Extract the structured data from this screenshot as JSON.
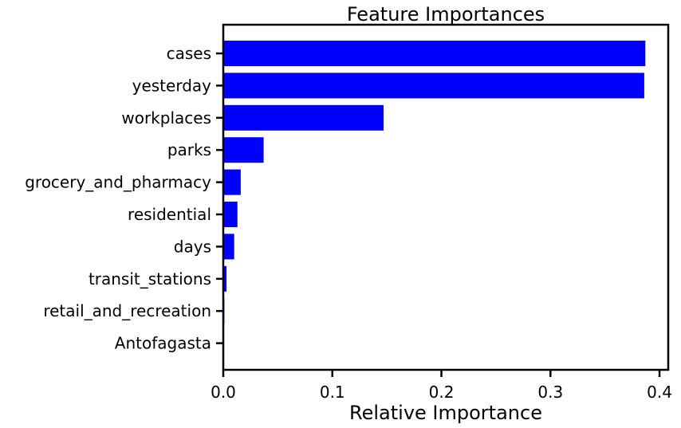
{
  "chart_data": {
    "type": "bar",
    "orientation": "horizontal",
    "title": "Feature Importances",
    "xlabel": "Relative Importance",
    "ylabel": "",
    "xlim": [
      0,
      0.408
    ],
    "x_ticks": [
      "0.0",
      "0.1",
      "0.2",
      "0.3",
      "0.4"
    ],
    "x_tick_values": [
      0.0,
      0.1,
      0.2,
      0.3,
      0.4
    ],
    "grid": false,
    "legend": "none",
    "bar_color": "#0000ff",
    "categories": [
      "cases",
      "yesterday",
      "workplaces",
      "parks",
      "grocery_and_pharmacy",
      "residential",
      "days",
      "transit_stations",
      "retail_and_recreation",
      "Antofagasta"
    ],
    "values": [
      0.387,
      0.386,
      0.147,
      0.037,
      0.016,
      0.013,
      0.01,
      0.003,
      0.001,
      0.0005
    ]
  }
}
